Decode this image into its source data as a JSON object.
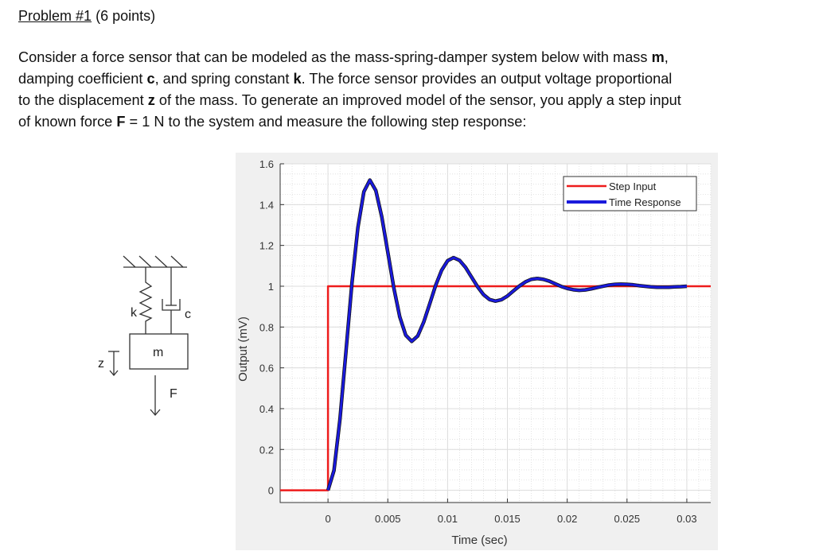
{
  "problem": {
    "title_label": "Problem #1",
    "title_points": "(6 points)",
    "lines": [
      [
        "Consider a force sensor that can be modeled as the mass-spring-damper system below with mass ",
        {
          "b": "m"
        },
        ","
      ],
      [
        "damping coefficient ",
        {
          "b": "c"
        },
        ", and spring constant ",
        {
          "b": "k"
        },
        ".  The force sensor provides an output voltage proportional"
      ],
      [
        "to the displacement ",
        {
          "b": "z"
        },
        " of the mass.  To generate an improved model of the sensor, you apply a step input"
      ],
      [
        "of known force ",
        {
          "b": "F"
        },
        " = 1 N to the system and measure the following step response:"
      ]
    ]
  },
  "diagram": {
    "k": "k",
    "c": "c",
    "m": "m",
    "z": "z",
    "F": "F"
  },
  "chart_data": {
    "type": "line",
    "xlabel": "Time (sec)",
    "ylabel": "Output (mV)",
    "xlim": [
      -0.004,
      0.032
    ],
    "ylim": [
      -0.06,
      1.6
    ],
    "xticks": [
      0,
      0.005,
      0.01,
      0.015,
      0.02,
      0.025,
      0.03
    ],
    "xtick_labels": [
      "0",
      "0.005",
      "0.01",
      "0.015",
      "0.02",
      "0.025",
      "0.03"
    ],
    "yticks": [
      0,
      0.2,
      0.4,
      0.6,
      0.8,
      1,
      1.2,
      1.4,
      1.6
    ],
    "ytick_labels": [
      "0",
      "0.2",
      "0.4",
      "0.6",
      "0.8",
      "1",
      "1.2",
      "1.4",
      "1.6"
    ],
    "grid": true,
    "minor_grid": true,
    "legend_placement": "top-right",
    "series": [
      {
        "name": "Step Input",
        "color": "#ee1c1c",
        "x": [
          -0.004,
          0,
          0,
          0.032
        ],
        "y": [
          0,
          0,
          1,
          1
        ]
      },
      {
        "name": "Time Response",
        "color": "#1a1adc",
        "x": [
          0,
          0.0005,
          0.001,
          0.0015,
          0.002,
          0.0025,
          0.003,
          0.0035,
          0.004,
          0.0045,
          0.005,
          0.0055,
          0.006,
          0.0065,
          0.007,
          0.0075,
          0.008,
          0.0085,
          0.009,
          0.0095,
          0.01,
          0.0105,
          0.011,
          0.0115,
          0.012,
          0.0125,
          0.013,
          0.0135,
          0.014,
          0.0145,
          0.015,
          0.0155,
          0.016,
          0.0165,
          0.017,
          0.0175,
          0.018,
          0.0185,
          0.019,
          0.0195,
          0.02,
          0.0205,
          0.021,
          0.0215,
          0.022,
          0.0225,
          0.023,
          0.0235,
          0.024,
          0.0245,
          0.025,
          0.0255,
          0.026,
          0.0265,
          0.027,
          0.0275,
          0.028,
          0.0285,
          0.029,
          0.0295,
          0.03
        ],
        "y": [
          0,
          0.097,
          0.348,
          0.678,
          1.014,
          1.288,
          1.463,
          1.52,
          1.469,
          1.339,
          1.167,
          0.993,
          0.85,
          0.76,
          0.73,
          0.756,
          0.824,
          0.913,
          1.004,
          1.078,
          1.125,
          1.14,
          1.127,
          1.092,
          1.045,
          0.998,
          0.959,
          0.935,
          0.927,
          0.934,
          0.952,
          0.977,
          1.001,
          1.021,
          1.034,
          1.038,
          1.034,
          1.025,
          1.012,
          0.999,
          0.989,
          0.983,
          0.98,
          0.982,
          0.987,
          0.994,
          1.0,
          1.006,
          1.009,
          1.01,
          1.009,
          1.007,
          1.003,
          1.0,
          0.997,
          0.995,
          0.995,
          0.995,
          0.997,
          0.998,
          1.0
        ]
      }
    ]
  }
}
